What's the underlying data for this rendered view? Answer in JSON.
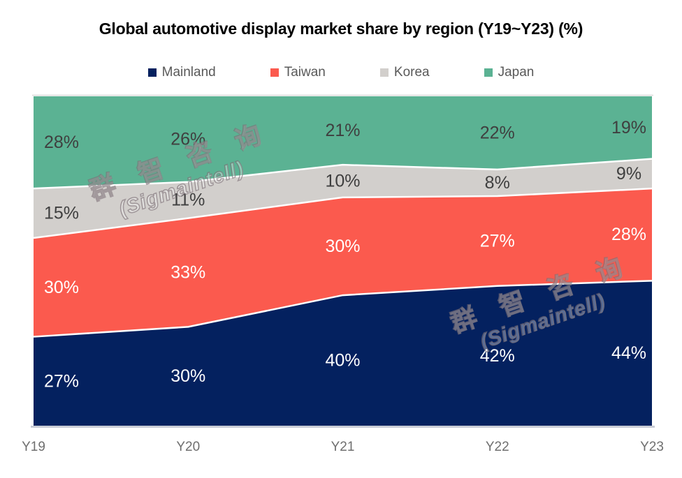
{
  "title": "Global automotive display market share by region (Y19~Y23) (%)",
  "watermark": {
    "line1": "群 智 咨 询",
    "line2": "(Sigmaintell)"
  },
  "colors": {
    "background": "#FFFFFF",
    "plot_top_line": "#D9D9D9",
    "axis_line": "#C8CBD5",
    "tick_label": "#6F6F6F",
    "legend_label": "#595959",
    "band_divider": "#FFFFFF"
  },
  "chart_data": {
    "type": "area",
    "variant": "100%-stacked",
    "title": "Global automotive display market share by region (Y19~Y23) (%)",
    "x": [
      "Y19",
      "Y20",
      "Y21",
      "Y22",
      "Y23"
    ],
    "series": [
      {
        "name": "Mainland",
        "color": "#04215F",
        "label_color": "#FFFFFF",
        "values": [
          27,
          30,
          40,
          42,
          44
        ]
      },
      {
        "name": "Taiwan",
        "color": "#FB5A4E",
        "label_color": "#FFFFFF",
        "values": [
          30,
          33,
          30,
          27,
          28
        ]
      },
      {
        "name": "Korea",
        "color": "#D2CFCC",
        "label_color": "#3F3F3F",
        "values": [
          15,
          11,
          10,
          8,
          9
        ]
      },
      {
        "name": "Japan",
        "color": "#5BB293",
        "label_color": "#3F3F3F",
        "values": [
          28,
          26,
          21,
          22,
          19
        ]
      }
    ],
    "value_suffix": "%",
    "ylim": [
      0,
      100
    ],
    "grid": false,
    "legend_position": "top"
  }
}
